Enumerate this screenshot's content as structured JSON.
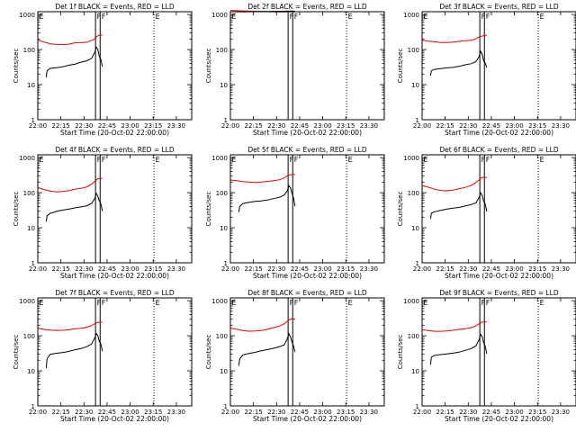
{
  "figure": {
    "xlabel": "Start Time (20-Oct-02 22:00:00)",
    "ylabel": "Counts/sec",
    "x_tick_labels": [
      "22:00",
      "22:15",
      "22:30",
      "22:45",
      "23:00",
      "23:15",
      "23:30"
    ],
    "y_tick_labels": [
      "1",
      "10",
      "100",
      "1000"
    ],
    "marker_labels": {
      "e": "E",
      "f": "F"
    }
  },
  "chart_data": [
    {
      "type": "line",
      "title": "Det 1f BLACK = Events, RED = LLD",
      "xlabel": "Start Time (20-Oct-02 22:00:00)",
      "ylabel": "Counts/sec",
      "x_unit": "minutes after 22:00",
      "xlim": [
        0,
        100
      ],
      "ylim": [
        1,
        1200
      ],
      "y_scale": "log",
      "x_ticks": [
        0,
        15,
        30,
        45,
        60,
        75,
        90
      ],
      "y_ticks": [
        1,
        10,
        100,
        1000
      ],
      "colors": {
        "events": "#000000",
        "lld": "#ee0000"
      },
      "markers": [
        {
          "label": "E",
          "x": 0,
          "style": "dotted"
        },
        {
          "label": "F",
          "x": 37.5,
          "style": "solid"
        },
        {
          "label": "F",
          "x": 40.5,
          "style": "solid"
        },
        {
          "label": "E",
          "x": 75.5,
          "style": "dotted"
        }
      ],
      "series": [
        {
          "color": "#ee0000",
          "x": [
            0,
            4,
            8,
            12,
            16,
            20,
            24,
            28,
            32,
            35,
            37,
            38.5,
            40,
            42
          ],
          "y": [
            185,
            160,
            140,
            132,
            130,
            135,
            150,
            155,
            165,
            190,
            210,
            255,
            270,
            275
          ]
        },
        {
          "color": "#000000",
          "x": [
            5.5,
            6,
            8,
            12,
            16,
            20,
            24,
            28,
            32,
            35,
            37,
            38,
            39,
            40,
            41,
            42
          ],
          "y": [
            16,
            25,
            30,
            32,
            34,
            38,
            40,
            45,
            48,
            55,
            80,
            110,
            95,
            60,
            50,
            32
          ]
        }
      ]
    },
    {
      "type": "line",
      "title": "Det 2f BLACK = Events, RED = LLD",
      "xlabel": "Start Time (20-Oct-02 22:00:00)",
      "ylabel": "Counts/sec",
      "x_unit": "minutes after 22:00",
      "xlim": [
        0,
        100
      ],
      "ylim": [
        1,
        1200
      ],
      "y_scale": "log",
      "x_ticks": [
        0,
        15,
        30,
        45,
        60,
        75,
        90
      ],
      "y_ticks": [
        1,
        10,
        100,
        1000
      ],
      "colors": {
        "events": "#000000",
        "lld": "#ee0000"
      },
      "markers": [
        {
          "label": "E",
          "x": 0,
          "style": "dotted"
        },
        {
          "label": "F",
          "x": 37.5,
          "style": "solid"
        },
        {
          "label": "F",
          "x": 40.5,
          "style": "solid"
        },
        {
          "label": "E",
          "x": 75.5,
          "style": "dotted"
        }
      ],
      "series": [
        {
          "color": "#ee0000",
          "x": [
            0,
            10,
            20,
            30,
            40,
            42
          ],
          "y": [
            1300,
            1280,
            1270,
            1260,
            1280,
            1250
          ]
        },
        {
          "color": "#000000",
          "x": [
            0,
            10,
            20,
            30,
            40,
            42
          ],
          "y": [
            1200,
            1190,
            1180,
            1170,
            1190,
            1160
          ]
        }
      ]
    },
    {
      "type": "line",
      "title": "Det 3f BLACK = Events, RED = LLD",
      "xlabel": "Start Time (20-Oct-02 22:00:00)",
      "ylabel": "Counts/sec",
      "x_unit": "minutes after 22:00",
      "xlim": [
        0,
        100
      ],
      "ylim": [
        1,
        1200
      ],
      "y_scale": "log",
      "x_ticks": [
        0,
        15,
        30,
        45,
        60,
        75,
        90
      ],
      "y_ticks": [
        1,
        10,
        100,
        1000
      ],
      "colors": {
        "events": "#000000",
        "lld": "#ee0000"
      },
      "markers": [
        {
          "label": "E",
          "x": 0,
          "style": "dotted"
        },
        {
          "label": "F",
          "x": 37.5,
          "style": "solid"
        },
        {
          "label": "F",
          "x": 40.5,
          "style": "solid"
        },
        {
          "label": "E",
          "x": 75.5,
          "style": "dotted"
        }
      ],
      "series": [
        {
          "color": "#ee0000",
          "x": [
            0,
            4,
            8,
            12,
            16,
            20,
            24,
            28,
            32,
            35,
            37,
            38.5,
            40,
            42
          ],
          "y": [
            185,
            170,
            160,
            150,
            150,
            155,
            165,
            175,
            185,
            210,
            240,
            255,
            265,
            270
          ]
        },
        {
          "color": "#000000",
          "x": [
            5.5,
            6,
            8,
            12,
            16,
            20,
            24,
            28,
            32,
            35,
            37,
            38,
            39,
            40,
            41,
            42
          ],
          "y": [
            18,
            25,
            28,
            30,
            32,
            33,
            35,
            38,
            40,
            45,
            60,
            85,
            70,
            45,
            40,
            30
          ]
        }
      ]
    },
    {
      "type": "line",
      "title": "Det 4f BLACK = Events, RED = LLD",
      "xlabel": "Start Time (20-Oct-02 22:00:00)",
      "ylabel": "Counts/sec",
      "x_unit": "minutes after 22:00",
      "xlim": [
        0,
        100
      ],
      "ylim": [
        1,
        1200
      ],
      "y_scale": "log",
      "x_ticks": [
        0,
        15,
        30,
        45,
        60,
        75,
        90
      ],
      "y_ticks": [
        1,
        10,
        100,
        1000
      ],
      "colors": {
        "events": "#000000",
        "lld": "#ee0000"
      },
      "markers": [
        {
          "label": "E",
          "x": 0,
          "style": "dotted"
        },
        {
          "label": "F",
          "x": 37.5,
          "style": "solid"
        },
        {
          "label": "F",
          "x": 40.5,
          "style": "solid"
        },
        {
          "label": "E",
          "x": 75.5,
          "style": "dotted"
        }
      ],
      "series": [
        {
          "color": "#ee0000",
          "x": [
            0,
            4,
            8,
            12,
            16,
            20,
            24,
            28,
            32,
            35,
            37,
            38.5,
            40,
            42
          ],
          "y": [
            140,
            125,
            115,
            112,
            115,
            120,
            130,
            135,
            145,
            170,
            200,
            230,
            240,
            245
          ]
        },
        {
          "color": "#000000",
          "x": [
            5.5,
            6,
            8,
            12,
            16,
            20,
            24,
            28,
            32,
            35,
            37,
            38,
            39,
            40,
            41,
            42
          ],
          "y": [
            15,
            22,
            25,
            28,
            30,
            32,
            35,
            38,
            42,
            50,
            70,
            100,
            85,
            60,
            50,
            30
          ]
        }
      ]
    },
    {
      "type": "line",
      "title": "Det 5f BLACK = Events, RED = LLD",
      "xlabel": "Start Time (20-Oct-02 22:00:00)",
      "ylabel": "Counts/sec",
      "x_unit": "minutes after 22:00",
      "xlim": [
        0,
        100
      ],
      "ylim": [
        1,
        1200
      ],
      "y_scale": "log",
      "x_ticks": [
        0,
        15,
        30,
        45,
        60,
        75,
        90
      ],
      "y_ticks": [
        1,
        10,
        100,
        1000
      ],
      "colors": {
        "events": "#000000",
        "lld": "#ee0000"
      },
      "markers": [
        {
          "label": "E",
          "x": 0,
          "style": "dotted"
        },
        {
          "label": "F",
          "x": 37.5,
          "style": "solid"
        },
        {
          "label": "F",
          "x": 40.5,
          "style": "solid"
        },
        {
          "label": "E",
          "x": 75.5,
          "style": "dotted"
        }
      ],
      "series": [
        {
          "color": "#ee0000",
          "x": [
            0,
            4,
            8,
            12,
            16,
            20,
            24,
            28,
            32,
            35,
            37,
            38.5,
            40,
            42
          ],
          "y": [
            230,
            215,
            200,
            190,
            185,
            190,
            200,
            215,
            235,
            270,
            320,
            340,
            350,
            345
          ]
        },
        {
          "color": "#000000",
          "x": [
            5.5,
            6,
            8,
            12,
            16,
            20,
            24,
            28,
            32,
            35,
            37,
            38,
            39,
            40,
            41,
            42
          ],
          "y": [
            28,
            40,
            50,
            55,
            60,
            62,
            65,
            70,
            75,
            85,
            110,
            150,
            130,
            90,
            70,
            40
          ]
        }
      ]
    },
    {
      "type": "line",
      "title": "Det 6f BLACK = Events, RED = LLD",
      "xlabel": "Start Time (20-Oct-02 22:00:00)",
      "ylabel": "Counts/sec",
      "x_unit": "minutes after 22:00",
      "xlim": [
        0,
        100
      ],
      "ylim": [
        1,
        1200
      ],
      "y_scale": "log",
      "x_ticks": [
        0,
        15,
        30,
        45,
        60,
        75,
        90
      ],
      "y_ticks": [
        1,
        10,
        100,
        1000
      ],
      "colors": {
        "events": "#000000",
        "lld": "#ee0000"
      },
      "markers": [
        {
          "label": "E",
          "x": 0,
          "style": "dotted"
        },
        {
          "label": "F",
          "x": 37.5,
          "style": "solid"
        },
        {
          "label": "F",
          "x": 40.5,
          "style": "solid"
        },
        {
          "label": "E",
          "x": 75.5,
          "style": "dotted"
        }
      ],
      "series": [
        {
          "color": "#ee0000",
          "x": [
            0,
            4,
            8,
            12,
            16,
            20,
            24,
            28,
            32,
            35,
            37,
            38.5,
            40,
            42
          ],
          "y": [
            160,
            145,
            130,
            122,
            120,
            125,
            135,
            145,
            160,
            190,
            220,
            250,
            260,
            255
          ]
        },
        {
          "color": "#000000",
          "x": [
            5.5,
            6,
            8,
            12,
            16,
            20,
            24,
            28,
            32,
            35,
            37,
            38,
            39,
            40,
            41,
            42
          ],
          "y": [
            18,
            26,
            28,
            30,
            32,
            34,
            36,
            40,
            45,
            52,
            75,
            105,
            90,
            60,
            50,
            30
          ]
        }
      ]
    },
    {
      "type": "line",
      "title": "Det 7f BLACK = Events, RED = LLD",
      "xlabel": "Start Time (20-Oct-02 22:00:00)",
      "ylabel": "Counts/sec",
      "x_unit": "minutes after 22:00",
      "xlim": [
        0,
        100
      ],
      "ylim": [
        1,
        1200
      ],
      "y_scale": "log",
      "x_ticks": [
        0,
        15,
        30,
        45,
        60,
        75,
        90
      ],
      "y_ticks": [
        1,
        10,
        100,
        1000
      ],
      "colors": {
        "events": "#000000",
        "lld": "#ee0000"
      },
      "markers": [
        {
          "label": "E",
          "x": 0,
          "style": "dotted"
        },
        {
          "label": "F",
          "x": 37.5,
          "style": "solid"
        },
        {
          "label": "F",
          "x": 40.5,
          "style": "solid"
        },
        {
          "label": "E",
          "x": 75.5,
          "style": "dotted"
        }
      ],
      "series": [
        {
          "color": "#ee0000",
          "x": [
            0,
            4,
            8,
            12,
            16,
            20,
            24,
            28,
            32,
            35,
            37,
            38.5,
            40,
            42
          ],
          "y": [
            165,
            150,
            140,
            135,
            135,
            140,
            150,
            160,
            175,
            200,
            230,
            250,
            260,
            255
          ]
        },
        {
          "color": "#000000",
          "x": [
            5.5,
            6,
            8,
            12,
            16,
            20,
            24,
            28,
            32,
            35,
            37,
            38,
            39,
            40,
            41,
            42
          ],
          "y": [
            12,
            22,
            30,
            33,
            35,
            38,
            42,
            45,
            50,
            58,
            85,
            110,
            95,
            65,
            55,
            35
          ]
        }
      ]
    },
    {
      "type": "line",
      "title": "Det 8f BLACK = Events, RED = LLD",
      "xlabel": "Start Time (20-Oct-02 22:00:00)",
      "ylabel": "Counts/sec",
      "x_unit": "minutes after 22:00",
      "xlim": [
        0,
        100
      ],
      "ylim": [
        1,
        1200
      ],
      "y_scale": "log",
      "x_ticks": [
        0,
        15,
        30,
        45,
        60,
        75,
        90
      ],
      "y_ticks": [
        1,
        10,
        100,
        1000
      ],
      "colors": {
        "events": "#000000",
        "lld": "#ee0000"
      },
      "markers": [
        {
          "label": "E",
          "x": 0,
          "style": "dotted"
        },
        {
          "label": "F",
          "x": 37.5,
          "style": "solid"
        },
        {
          "label": "F",
          "x": 40.5,
          "style": "solid"
        },
        {
          "label": "E",
          "x": 75.5,
          "style": "dotted"
        }
      ],
      "series": [
        {
          "color": "#ee0000",
          "x": [
            0,
            4,
            8,
            12,
            16,
            20,
            24,
            28,
            32,
            35,
            37,
            38.5,
            40,
            42
          ],
          "y": [
            165,
            155,
            145,
            142,
            145,
            150,
            160,
            175,
            190,
            215,
            250,
            275,
            285,
            280
          ]
        },
        {
          "color": "#000000",
          "x": [
            5.5,
            6,
            8,
            12,
            16,
            20,
            24,
            28,
            32,
            35,
            37,
            38,
            39,
            40,
            41,
            42
          ],
          "y": [
            14,
            22,
            28,
            30,
            32,
            35,
            38,
            42,
            48,
            55,
            85,
            120,
            100,
            70,
            55,
            35
          ]
        }
      ]
    },
    {
      "type": "line",
      "title": "Det 9f BLACK = Events, RED = LLD",
      "xlabel": "Start Time (20-Oct-02 22:00:00)",
      "ylabel": "Counts/sec",
      "x_unit": "minutes after 22:00",
      "xlim": [
        0,
        100
      ],
      "ylim": [
        1,
        1200
      ],
      "y_scale": "log",
      "x_ticks": [
        0,
        15,
        30,
        45,
        60,
        75,
        90
      ],
      "y_ticks": [
        1,
        10,
        100,
        1000
      ],
      "colors": {
        "events": "#000000",
        "lld": "#ee0000"
      },
      "markers": [
        {
          "label": "E",
          "x": 0,
          "style": "dotted"
        },
        {
          "label": "F",
          "x": 37.5,
          "style": "solid"
        },
        {
          "label": "F",
          "x": 40.5,
          "style": "solid"
        },
        {
          "label": "E",
          "x": 75.5,
          "style": "dotted"
        }
      ],
      "series": [
        {
          "color": "#ee0000",
          "x": [
            0,
            4,
            8,
            12,
            16,
            20,
            24,
            28,
            32,
            35,
            37,
            38.5,
            40,
            42
          ],
          "y": [
            150,
            140,
            130,
            128,
            130,
            135,
            145,
            155,
            170,
            195,
            230,
            255,
            265,
            260
          ]
        },
        {
          "color": "#000000",
          "x": [
            5.5,
            6,
            8,
            12,
            16,
            20,
            24,
            28,
            32,
            35,
            37,
            38,
            39,
            40,
            41,
            42
          ],
          "y": [
            15,
            24,
            28,
            30,
            32,
            34,
            36,
            40,
            44,
            52,
            75,
            105,
            90,
            60,
            48,
            30
          ]
        }
      ]
    }
  ]
}
